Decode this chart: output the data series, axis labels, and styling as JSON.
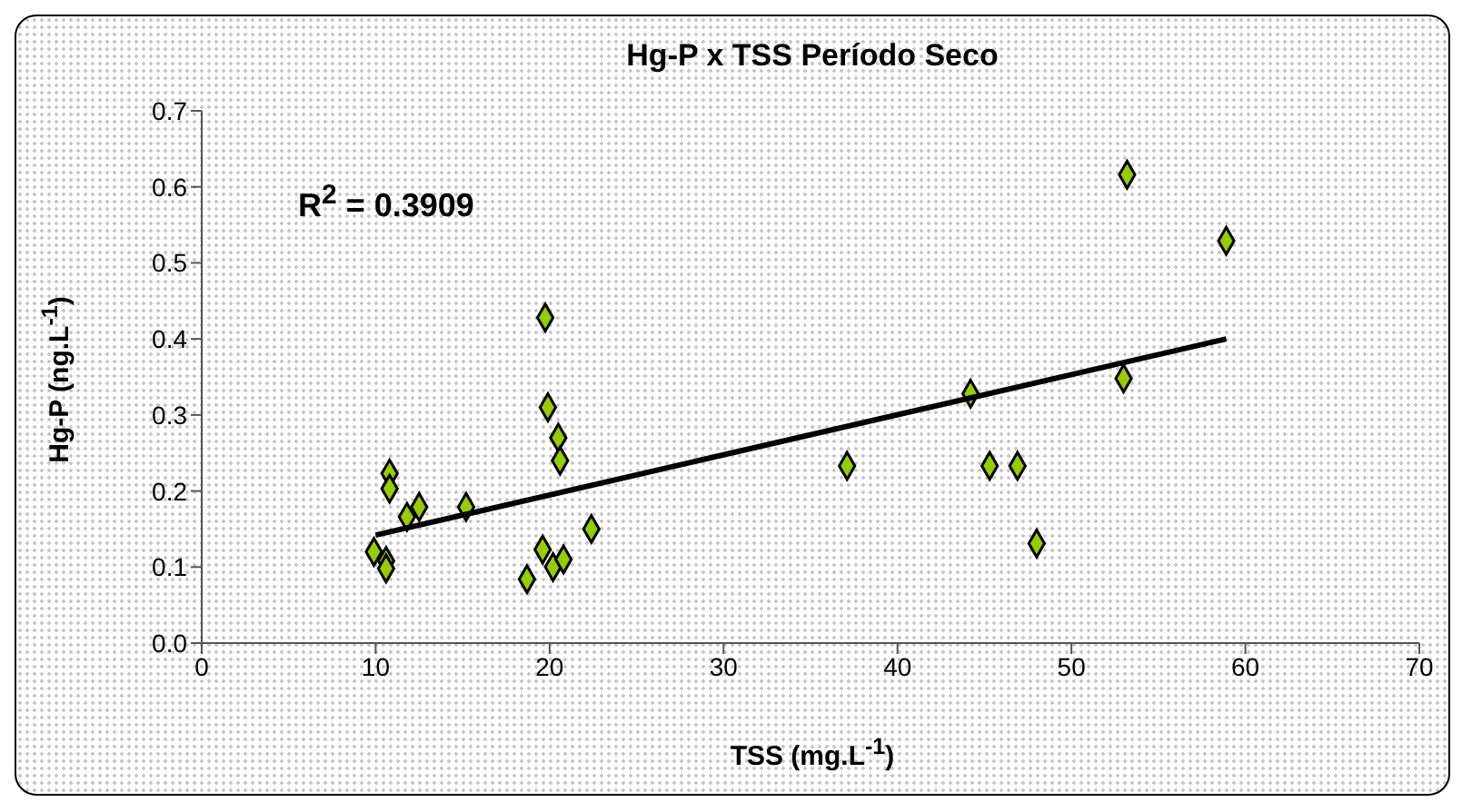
{
  "chart_data": {
    "type": "scatter",
    "title": "Hg-P x TSS Período Seco",
    "xlabel": "TSS (mg.L$^{-1}$)",
    "ylabel": "Hg-P (ng.L$^{-1}$)",
    "annotations": [
      "R$^{2}$ = 0.3909"
    ],
    "xlim": [
      0,
      70
    ],
    "xticks": [
      0,
      10,
      20,
      30,
      40,
      50,
      60,
      70
    ],
    "ylim": [
      0,
      0.7
    ],
    "yticks": [
      {
        "value": 0,
        "label": "0.0"
      },
      {
        "value": 0.1,
        "label": "0.1"
      },
      {
        "value": 0.2,
        "label": "0.2"
      },
      {
        "value": 0.3,
        "label": "0.3"
      },
      {
        "value": 0.4,
        "label": "0.4"
      },
      {
        "value": 0.5,
        "label": "0.5"
      },
      {
        "value": 0.6,
        "label": "0.6"
      },
      {
        "value": 0.7,
        "label": "0.7"
      }
    ],
    "grid": false,
    "marker": "diamond",
    "series": [
      {
        "color": "#99cc00",
        "x": [
          9.9,
          10.6,
          10.6,
          10.8,
          10.8,
          11.8,
          12.5,
          15.2,
          18.7,
          19.6,
          19.75,
          19.9,
          20.5,
          20.6,
          20.2,
          20.8,
          22.4,
          37.1,
          44.2,
          45.3,
          46.9,
          48.0,
          53.0,
          53.2,
          58.9
        ],
        "values": [
          0.12,
          0.108,
          0.098,
          0.223,
          0.203,
          0.166,
          0.179,
          0.179,
          0.084,
          0.123,
          0.428,
          0.31,
          0.27,
          0.24,
          0.1,
          0.11,
          0.15,
          0.233,
          0.328,
          0.233,
          0.233,
          0.131,
          0.348,
          0.616,
          0.529
        ]
      },
      {
        "type": "line",
        "color": "#000000",
        "marker": "none",
        "x": [
          10,
          58.9
        ],
        "values": [
          0.142,
          0.4
        ]
      }
    ]
  }
}
